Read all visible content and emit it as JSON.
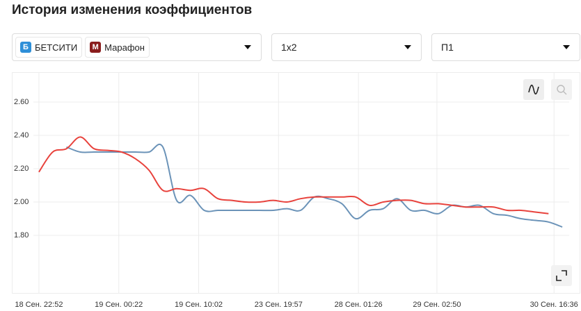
{
  "header": {
    "title": "История изменения коэффициентов"
  },
  "filters": {
    "market": "1x2",
    "outcome": "П1"
  },
  "chart_data": {
    "type": "line",
    "x": [
      0,
      1,
      2,
      3,
      4,
      5,
      6,
      7,
      8,
      9,
      10,
      11,
      12,
      13,
      14,
      15,
      16,
      17,
      18,
      19,
      20,
      21,
      22,
      23,
      24,
      25,
      26,
      27,
      28,
      29,
      30,
      31,
      32,
      33,
      34,
      35,
      36,
      37,
      38
    ],
    "xlim": [
      -0.4,
      38.5
    ],
    "xticks": [
      {
        "value": 0,
        "label": "18 Сен. 22:52"
      },
      {
        "value": 5.8,
        "label": "19 Сен. 00:22"
      },
      {
        "value": 11.6,
        "label": "19 Сен. 10:02"
      },
      {
        "value": 17.4,
        "label": "23 Сен. 19:57"
      },
      {
        "value": 23.2,
        "label": "28 Сен. 01:26"
      },
      {
        "value": 28.9,
        "label": "29 Сен. 02:50"
      },
      {
        "value": 37.4,
        "label": "30 Сен. 16:36"
      }
    ],
    "ylim": [
      1.5,
      2.7
    ],
    "yticks": [
      {
        "value": 1.8,
        "label": "1.80"
      },
      {
        "value": 2.0,
        "label": "2.00"
      },
      {
        "value": 2.2,
        "label": "2.20"
      },
      {
        "value": 2.4,
        "label": "2.40"
      },
      {
        "value": 2.6,
        "label": "2.60"
      }
    ],
    "grid": true,
    "series": [
      {
        "name": "БЕТСИТИ",
        "color": "#6b93b8",
        "values": [
          null,
          null,
          2.33,
          2.3,
          2.3,
          2.3,
          2.3,
          2.3,
          2.3,
          2.33,
          2.01,
          2.04,
          1.95,
          1.95,
          1.95,
          1.95,
          1.95,
          1.95,
          1.96,
          1.95,
          2.03,
          2.02,
          1.99,
          1.9,
          1.95,
          1.96,
          2.02,
          1.95,
          1.95,
          1.93,
          1.98,
          1.97,
          1.98,
          1.93,
          1.92,
          1.9,
          1.89,
          1.88,
          1.85
        ]
      },
      {
        "name": "Марафон",
        "color": "#e8423c",
        "values": [
          2.18,
          2.3,
          2.32,
          2.39,
          2.32,
          2.31,
          2.3,
          2.26,
          2.19,
          2.07,
          2.08,
          2.07,
          2.08,
          2.02,
          2.01,
          2.0,
          2.0,
          2.01,
          2.0,
          2.02,
          2.03,
          2.03,
          2.03,
          2.03,
          1.98,
          2.0,
          2.01,
          2.01,
          1.99,
          1.99,
          1.98,
          1.97,
          1.97,
          1.97,
          1.95,
          1.95,
          1.94,
          1.93,
          null
        ]
      }
    ]
  }
}
